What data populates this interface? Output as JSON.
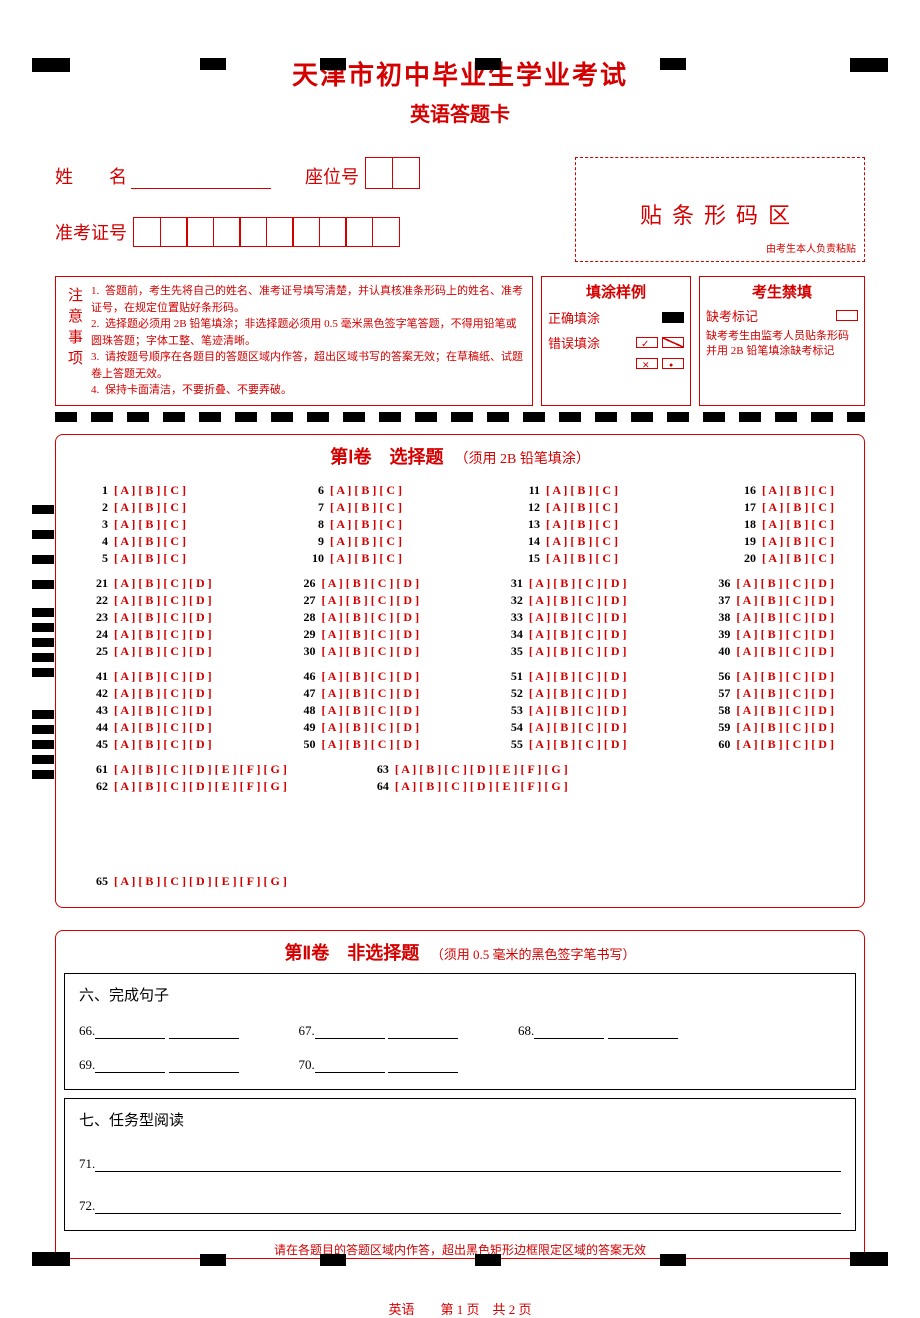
{
  "title": "天津市初中毕业生学业考试",
  "subtitle": "英语答题卡",
  "labels": {
    "name": "姓　　名",
    "seat": "座位号",
    "examId": "准考证号"
  },
  "barcode": {
    "title": "贴条形码区",
    "sub": "由考生本人负责粘贴"
  },
  "notice": {
    "label": "注意事项",
    "items": [
      "答题前，考生先将自己的姓名、准考证号填写清楚，并认真核准条形码上的姓名、准考证号，在规定位置贴好条形码。",
      "选择题必须用 2B 铅笔填涂；非选择题必须用 0.5 毫米黑色签字笔答题，不得用铅笔或圆珠答题；字体工整、笔迹清晰。",
      "请按题号顺序在各题目的答题区域内作答，超出区域书写的答案无效；在草稿纸、试题卷上答题无效。",
      "保持卡面清洁，不要折叠、不要弄破。"
    ]
  },
  "fillExample": {
    "title": "填涂样例",
    "correct": "正确填涂",
    "wrong": "错误填涂"
  },
  "forbid": {
    "title": "考生禁填",
    "absent": "缺考标记",
    "text": "缺考考生由监考人员贴条形码并用 2B 铅笔填涂缺考标记"
  },
  "section1": {
    "title": "第Ⅰ卷　选择题",
    "hint": "（须用 2B 铅笔填涂）",
    "opts3": "[ A ] [ B ] [ C ]",
    "opts4": "[ A ] [ B ] [ C ] [ D ]",
    "opts7": "[ A ] [ B ] [ C ] [ D ] [ E ] [ F ] [ G ]",
    "group_3opt": [
      [
        1,
        2,
        3,
        4,
        5
      ],
      [
        6,
        7,
        8,
        9,
        10
      ],
      [
        11,
        12,
        13,
        14,
        15
      ],
      [
        16,
        17,
        18,
        19,
        20
      ]
    ],
    "group_4opt_a": [
      [
        21,
        22,
        23,
        24,
        25
      ],
      [
        26,
        27,
        28,
        29,
        30
      ],
      [
        31,
        32,
        33,
        34,
        35
      ],
      [
        36,
        37,
        38,
        39,
        40
      ]
    ],
    "group_4opt_b": [
      [
        41,
        42,
        43,
        44,
        45
      ],
      [
        46,
        47,
        48,
        49,
        50
      ],
      [
        51,
        52,
        53,
        54,
        55
      ],
      [
        56,
        57,
        58,
        59,
        60
      ]
    ],
    "group_7opt": [
      [
        61,
        62
      ],
      [
        63,
        64
      ],
      [
        65
      ]
    ]
  },
  "section2": {
    "title": "第Ⅱ卷　非选择题",
    "hint": "（须用 0.5 毫米的黑色签字笔书写）",
    "q6": {
      "heading": "六、完成句子",
      "row1": [
        "66.",
        "67.",
        "68."
      ],
      "row2": [
        "69.",
        "70."
      ]
    },
    "q7": {
      "heading": "七、任务型阅读",
      "items": [
        "71.",
        "72."
      ]
    },
    "warn": "请在各题目的答题区域内作答，超出黑色矩形边框限定区域的答案无效"
  },
  "footer": {
    "subject": "英语",
    "page": "第 1 页",
    "total": "共 2 页"
  },
  "colors": {
    "red": "#d40000",
    "black": "#000000"
  }
}
